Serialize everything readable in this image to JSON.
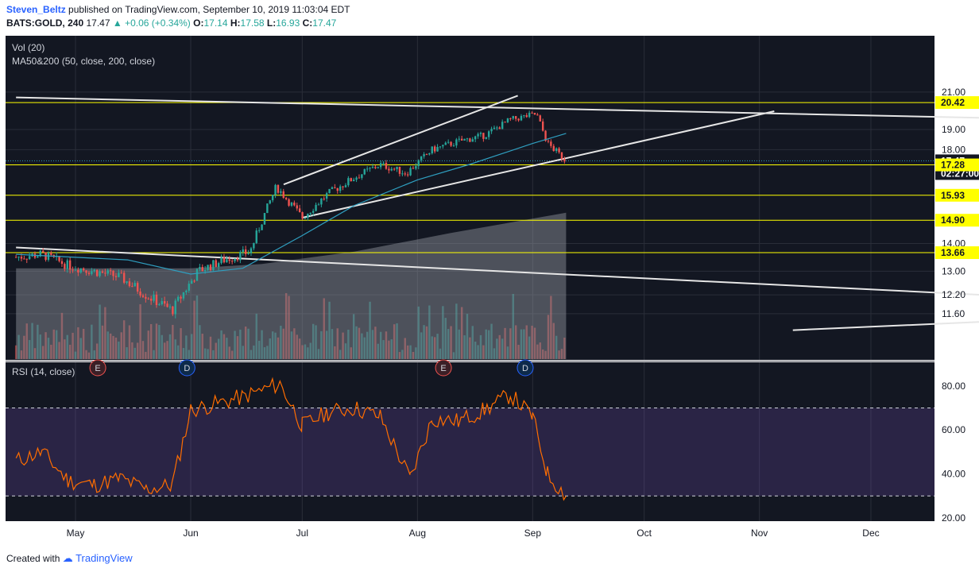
{
  "header": {
    "author": "Steven_Beltz",
    "published": "published on TradingView.com, September 10, 2019 11:03:04 EDT",
    "symbol": "BATS:GOLD, 240",
    "last": "17.47",
    "change": "+0.06 (+0.34%)",
    "o_label": "O:",
    "o_value": "17.14",
    "h_label": "H:",
    "h_value": "17.58",
    "l_label": "L:",
    "l_value": "16.93",
    "c_label": "C:",
    "c_value": "17.47"
  },
  "footer": {
    "created": "Created with",
    "brand": "TradingView"
  },
  "colors": {
    "background": "#131722",
    "up": "#26a69a",
    "down": "#ef5350",
    "ma": "#2f9fc0",
    "rsi": "#ff6d00",
    "level": "#ffff00",
    "trendline": "#e6e6e6"
  },
  "chart_data": [
    {
      "type": "candlestick",
      "legend": [
        "Vol (20)",
        "MA50&200 (50, close, 200, close)"
      ],
      "y_ticks": [
        "21.00",
        "19.00",
        "18.00",
        "14.00",
        "13.00",
        "12.20",
        "11.60"
      ],
      "x_ticks": [
        "May",
        "Jun",
        "Jul",
        "Aug",
        "Sep",
        "Oct",
        "Nov",
        "Dec"
      ],
      "price_labels": [
        {
          "value": "20.42",
          "style": "level"
        },
        {
          "value": "17.47",
          "style": "last"
        },
        {
          "value": "02:27:00",
          "style": "countdown"
        },
        {
          "value": "17.28",
          "style": "level"
        },
        {
          "value": "15.93",
          "style": "level"
        },
        {
          "value": "14.90",
          "style": "level"
        },
        {
          "value": "13.66",
          "style": "level"
        }
      ],
      "horizontal_levels": [
        20.42,
        17.28,
        15.93,
        14.9,
        13.66
      ],
      "events": [
        {
          "label": "E",
          "date": "2019-05-07"
        },
        {
          "label": "D",
          "date": "2019-05-31"
        },
        {
          "label": "E",
          "date": "2019-08-08"
        },
        {
          "label": "D",
          "date": "2019-08-30"
        }
      ],
      "close_path": [
        [
          "2019-04-15",
          13.5
        ],
        [
          "2019-04-22",
          13.6
        ],
        [
          "2019-04-29",
          13.2
        ],
        [
          "2019-05-06",
          13.0
        ],
        [
          "2019-05-13",
          12.8
        ],
        [
          "2019-05-20",
          12.2
        ],
        [
          "2019-05-27",
          11.7
        ],
        [
          "2019-06-03",
          13.0
        ],
        [
          "2019-06-10",
          13.4
        ],
        [
          "2019-06-17",
          13.7
        ],
        [
          "2019-06-24",
          16.3
        ],
        [
          "2019-07-01",
          15.0
        ],
        [
          "2019-07-08",
          16.0
        ],
        [
          "2019-07-15",
          16.7
        ],
        [
          "2019-07-22",
          17.3
        ],
        [
          "2019-07-29",
          16.9
        ],
        [
          "2019-08-05",
          18.0
        ],
        [
          "2019-08-12",
          18.4
        ],
        [
          "2019-08-19",
          18.7
        ],
        [
          "2019-08-26",
          19.5
        ],
        [
          "2019-09-02",
          19.8
        ],
        [
          "2019-09-05",
          18.3
        ],
        [
          "2019-09-10",
          17.47
        ]
      ],
      "ma50": [
        [
          "2019-04-15",
          13.6
        ],
        [
          "2019-05-15",
          13.4
        ],
        [
          "2019-06-01",
          12.9
        ],
        [
          "2019-06-15",
          13.1
        ],
        [
          "2019-07-01",
          14.3
        ],
        [
          "2019-07-15",
          15.5
        ],
        [
          "2019-08-01",
          16.6
        ],
        [
          "2019-08-15",
          17.3
        ],
        [
          "2019-09-01",
          18.3
        ],
        [
          "2019-09-10",
          18.8
        ]
      ],
      "ma200_area": [
        [
          "2019-04-15",
          13.1
        ],
        [
          "2019-06-01",
          13.1
        ],
        [
          "2019-06-20",
          13.25
        ],
        [
          "2019-07-15",
          13.7
        ],
        [
          "2019-08-10",
          14.4
        ],
        [
          "2019-09-10",
          15.2
        ]
      ]
    },
    {
      "type": "line",
      "legend": [
        "RSI (14, close)"
      ],
      "y_ticks": [
        "80.00",
        "60.00",
        "40.00",
        "20.00"
      ],
      "bands": [
        70,
        30
      ],
      "series": [
        {
          "values": [
            [
              "2019-04-15",
              46
            ],
            [
              "2019-04-22",
              50
            ],
            [
              "2019-04-29",
              37
            ],
            [
              "2019-05-06",
              35
            ],
            [
              "2019-05-13",
              38
            ],
            [
              "2019-05-20",
              33
            ],
            [
              "2019-05-27",
              35
            ],
            [
              "2019-06-01",
              69
            ],
            [
              "2019-06-15",
              75
            ],
            [
              "2019-06-25",
              81
            ],
            [
              "2019-07-01",
              62
            ],
            [
              "2019-07-08",
              68
            ],
            [
              "2019-07-15",
              70
            ],
            [
              "2019-07-22",
              66
            ],
            [
              "2019-07-30",
              38
            ],
            [
              "2019-08-05",
              65
            ],
            [
              "2019-08-12",
              64
            ],
            [
              "2019-08-19",
              69
            ],
            [
              "2019-08-26",
              76
            ],
            [
              "2019-09-01",
              66
            ],
            [
              "2019-09-05",
              40
            ],
            [
              "2019-09-10",
              30
            ]
          ]
        }
      ]
    }
  ]
}
